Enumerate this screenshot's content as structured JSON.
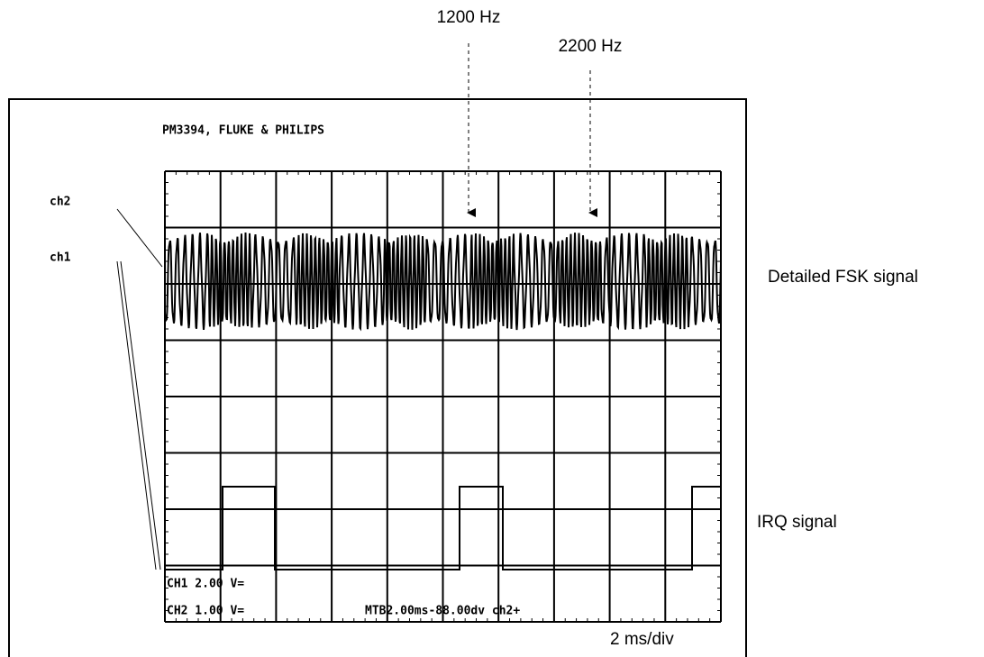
{
  "annotations": {
    "freq_low": "1200 Hz",
    "freq_high": "2200 Hz",
    "fsk": "Detailed FSK signal",
    "irq": "IRQ signal",
    "timebase": "2 ms/div"
  },
  "screen": {
    "title": "PM3394, FLUKE & PHILIPS",
    "ch2_label": "ch2",
    "ch1_label": "ch1",
    "status": {
      "ch1": "CH1 2.00 V=",
      "ch2": "CH2 1.00 V=",
      "mtb": "MTB2.00ms-88.00dv ch2+"
    }
  }
}
